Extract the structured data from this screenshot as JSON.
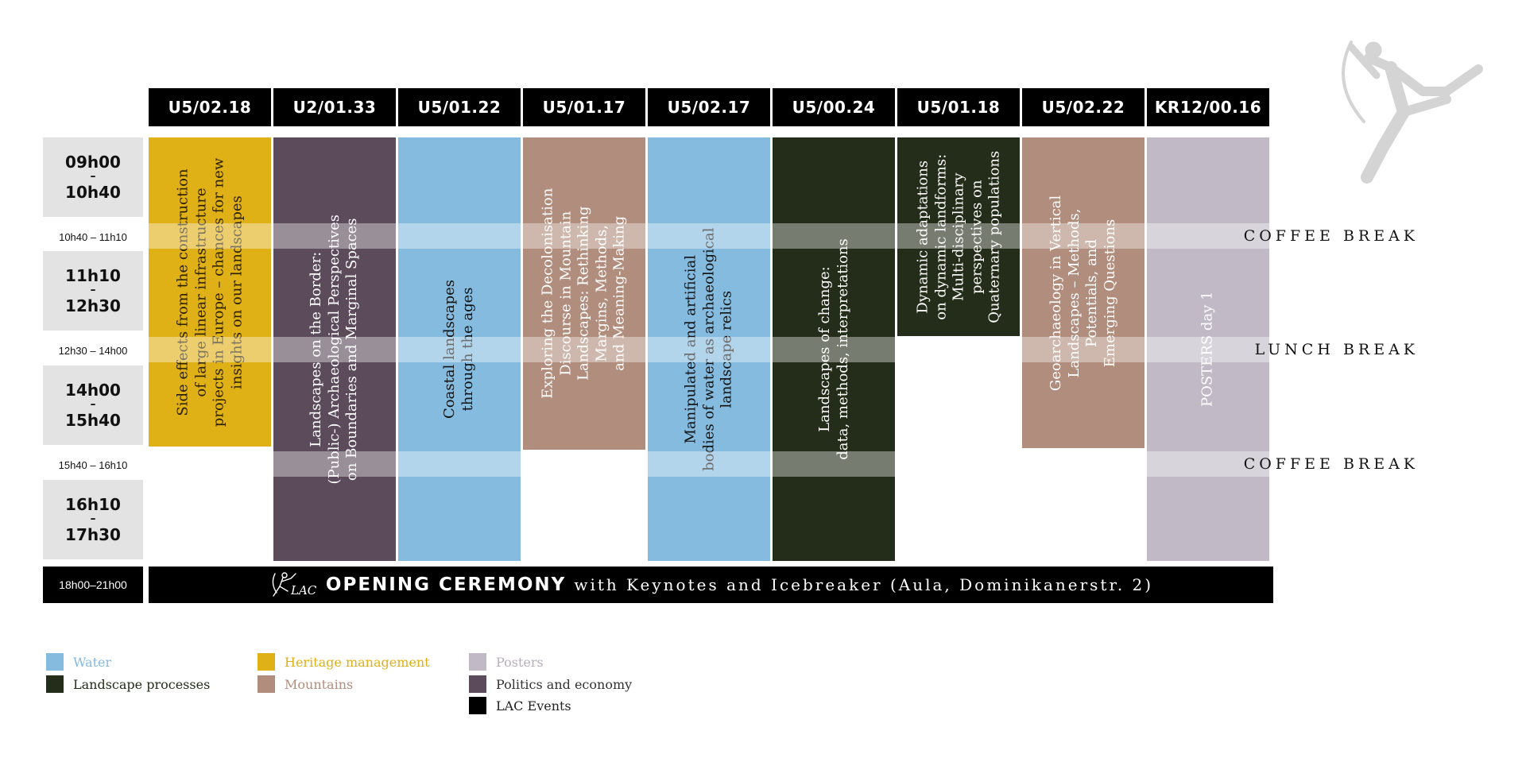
{
  "colors": {
    "water": "#84bbdf",
    "landscape": "#242d1a",
    "heritage": "#e0b017",
    "mountains": "#b18d7d",
    "posters": "#c1bac6",
    "politics": "#5b4b5b",
    "lac": "#000000",
    "time_block": "#e3e3e3"
  },
  "rooms": [
    "U5/02.18",
    "U2/01.33",
    "U5/01.22",
    "U5/01.17",
    "U5/02.17",
    "U5/00.24",
    "U5/01.18",
    "U5/02.22",
    "KR12/00.16"
  ],
  "times": {
    "slot1_start": "09h00",
    "slot1_end": "10h40",
    "break1": "10h40 – 11h10",
    "slot2_start": "11h10",
    "slot2_end": "12h30",
    "break2": "12h30 – 14h00",
    "slot3_start": "14h00",
    "slot3_end": "15h40",
    "break3": "15h40 – 16h10",
    "slot4_start": "16h10",
    "slot4_end": "17h30",
    "evening": "18h00–21h00",
    "dash": "–"
  },
  "sessions": [
    {
      "title": "Side effects from the construction\nof large linear infrastructure\nprojects in Europe – chances for new\ninsights on our landscapes",
      "category": "heritage"
    },
    {
      "title": "Landscapes on the Border:\n(Public-) Archaeological Perspectives\non Boundaries and Marginal Spaces",
      "category": "politics"
    },
    {
      "title": "Coastal landscapes\nthrough the ages",
      "category": "water"
    },
    {
      "title": "Exploring the Decolonisation\nDiscourse in Mountain\nLandscapes: Rethinking\nMargins, Methods,\nand Meaning-Making",
      "category": "mountains"
    },
    {
      "title": "Manipulated and artificial\nbodies of water as archaeological\nlandscape relics",
      "category": "water"
    },
    {
      "title": "Landscapes of change:\ndata, methods, interpretations",
      "category": "landscape"
    },
    {
      "title": "Dynamic adaptations\non dynamic landforms:\nMulti-disciplinary\nperspectives on\nQuaternary populations",
      "category": "landscape"
    },
    {
      "title": "Geoarchaeology in Vertical\nLandscapes – Methods,\nPotentials, and\nEmerging Questions",
      "category": "mountains"
    },
    {
      "title": "POSTERS day 1",
      "category": "posters"
    }
  ],
  "breaks": {
    "coffee1": "COFFEE BREAK",
    "lunch": "LUNCH BREAK",
    "coffee2": "COFFEE BREAK"
  },
  "ceremony": {
    "logo": "LAC",
    "main": "OPENING CEREMONY",
    "sub": "with Keynotes and Icebreaker (Aula, Dominikanerstr. 2)"
  },
  "legend": {
    "water": "Water",
    "landscape": "Landscape processes",
    "heritage": "Heritage management",
    "mountains": "Mountains",
    "posters": "Posters",
    "politics": "Politics and economy",
    "lac": "LAC Events"
  },
  "icons": {
    "corner_logo": "archer-figure-icon",
    "ceremony_logo": "lac-logo-icon"
  }
}
